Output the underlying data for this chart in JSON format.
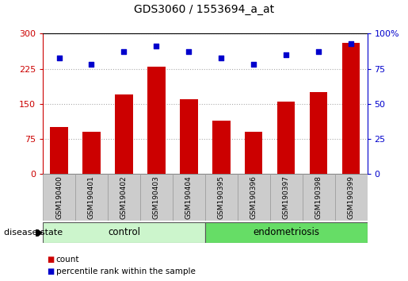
{
  "title": "GDS3060 / 1553694_a_at",
  "samples": [
    "GSM190400",
    "GSM190401",
    "GSM190402",
    "GSM190403",
    "GSM190404",
    "GSM190395",
    "GSM190396",
    "GSM190397",
    "GSM190398",
    "GSM190399"
  ],
  "bar_values": [
    100,
    90,
    170,
    230,
    160,
    115,
    90,
    155,
    175,
    280
  ],
  "percentile_values": [
    83,
    78,
    87,
    91,
    87,
    83,
    78,
    85,
    87,
    93
  ],
  "group_labels": [
    "control",
    "endometriosis"
  ],
  "group_colors": [
    "#ccf5cc",
    "#66dd66"
  ],
  "bar_color": "#cc0000",
  "dot_color": "#0000cc",
  "ylim_left": [
    0,
    300
  ],
  "ylim_right": [
    0,
    100
  ],
  "yticks_left": [
    0,
    75,
    150,
    225,
    300
  ],
  "yticks_right": [
    0,
    25,
    50,
    75,
    100
  ],
  "left_axis_color": "#cc0000",
  "right_axis_color": "#0000cc",
  "disease_state_label": "disease state",
  "legend_count_label": "count",
  "legend_percentile_label": "percentile rank within the sample",
  "grid_color": "#aaaaaa",
  "tick_label_box_color": "#cccccc",
  "spine_color": "#000000"
}
